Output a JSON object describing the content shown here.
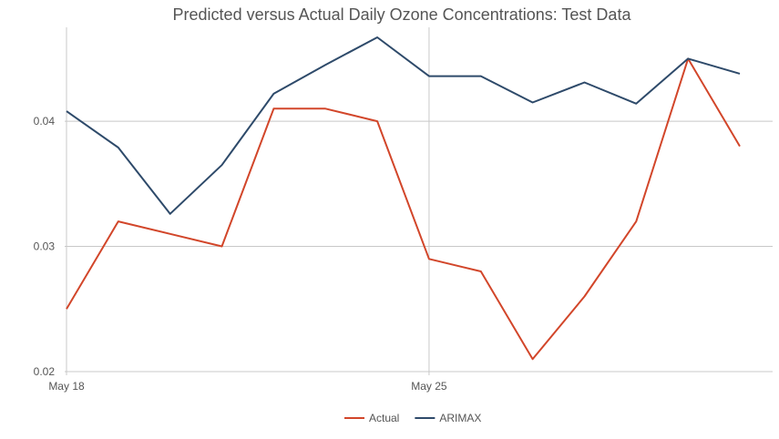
{
  "chart_data": {
    "type": "line",
    "title": "Predicted versus Actual Daily Ozone Concentrations: Test Data",
    "xlabel": "",
    "ylabel": "",
    "x": [
      "2023-05-18",
      "2023-05-19",
      "2023-05-20",
      "2023-05-21",
      "2023-05-22",
      "2023-05-23",
      "2023-05-24",
      "2023-05-25",
      "2023-05-26",
      "2023-05-27",
      "2023-05-28",
      "2023-05-29",
      "2023-05-30",
      "2023-05-31"
    ],
    "x_ticks": [
      {
        "date": "2023-05-18",
        "label": "May 18"
      },
      {
        "date": "2023-05-25",
        "label": "May 25"
      }
    ],
    "ylim": [
      0.02,
      0.0475
    ],
    "y_ticks": [
      {
        "value": 0.02,
        "label": "0.02"
      },
      {
        "value": 0.03,
        "label": "0.03"
      },
      {
        "value": 0.04,
        "label": "0.04"
      }
    ],
    "grid": true,
    "legend_position": "bottom",
    "series": [
      {
        "name": "Actual",
        "color": "#d2462a",
        "values": [
          0.025,
          0.032,
          0.031,
          0.03,
          0.041,
          0.041,
          0.04,
          0.029,
          0.028,
          0.021,
          0.026,
          0.032,
          0.045,
          0.038
        ]
      },
      {
        "name": "ARIMAX",
        "color": "#2e4a6a",
        "values": [
          0.0408,
          0.0379,
          0.0326,
          0.0365,
          0.0422,
          0.0445,
          0.0467,
          0.0436,
          0.0436,
          0.0415,
          0.0431,
          0.0414,
          0.045,
          0.0438
        ]
      }
    ]
  }
}
